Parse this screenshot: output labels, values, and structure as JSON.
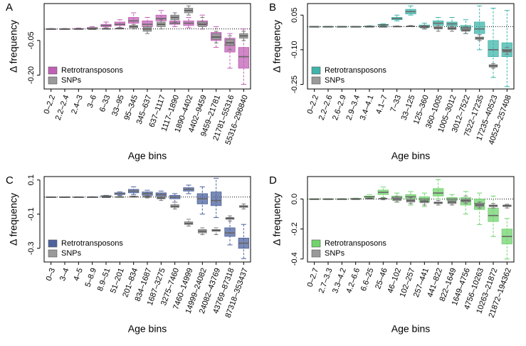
{
  "chart_data": [
    {
      "type": "box",
      "panel": "A",
      "xlabel": "Age bins",
      "ylabel": "Δ frequency",
      "hline": 0,
      "ylim": [
        -0.26,
        0.11
      ],
      "yticks": [
        -0.05,
        {
          "value": -0.2,
          "label": "-0.20"
        }
      ],
      "legend": "bottom-left",
      "categories": [
        "0–2.2",
        "2.2–2.4",
        "2.4–3",
        "3–6",
        "6–33",
        "33–95",
        "95–345",
        "345–637",
        "637–1117",
        "1117–1890",
        "1890–4402",
        "4402–9459",
        "9459–21781",
        "21781–55316",
        "55316–296840"
      ],
      "series": [
        {
          "name": "Retrotransposons",
          "color": "#c060b4",
          "values": [
            [
              0,
              0,
              0,
              0,
              0
            ],
            [
              0,
              0,
              0,
              0,
              0
            ],
            [
              0,
              0,
              0,
              0.002,
              0.004
            ],
            [
              0,
              0.002,
              0.004,
              0.006,
              0.01
            ],
            [
              0.005,
              0.01,
              0.015,
              0.02,
              0.03
            ],
            [
              0.005,
              0.015,
              0.02,
              0.03,
              0.04
            ],
            [
              0.01,
              0.025,
              0.035,
              0.05,
              0.07
            ],
            [
              0,
              0.01,
              0.02,
              0.035,
              0.05
            ],
            [
              0.02,
              0.035,
              0.045,
              0.06,
              0.08
            ],
            [
              0.01,
              0.02,
              0.025,
              0.035,
              0.05
            ],
            [
              0.005,
              0.015,
              0.025,
              0.035,
              0.05
            ],
            [
              0,
              0.015,
              0.025,
              0.035,
              0.06
            ],
            [
              -0.08,
              -0.05,
              -0.035,
              -0.015,
              0.01
            ],
            [
              -0.17,
              -0.1,
              -0.07,
              -0.04,
              -0.02
            ],
            [
              -0.24,
              -0.17,
              -0.12,
              -0.08,
              0
            ]
          ]
        },
        {
          "name": "SNPs",
          "color": "#9a9a9a",
          "values": [
            [
              0,
              0,
              0,
              0,
              0.002
            ],
            [
              0,
              0,
              0,
              0,
              0.002
            ],
            [
              0,
              0,
              0,
              0,
              0.002
            ],
            [
              0,
              0,
              0,
              0,
              0.002
            ],
            [
              0,
              0,
              0,
              0.002,
              0.004
            ],
            [
              0,
              0,
              0.002,
              0.004,
              0.006
            ],
            [
              0,
              0.005,
              0.01,
              0.015,
              0.02
            ],
            [
              -0.02,
              -0.01,
              0,
              0.01,
              0.02
            ],
            [
              0,
              0.01,
              0.02,
              0.03,
              0.04
            ],
            [
              0.03,
              0.04,
              0.05,
              0.06,
              0.07
            ],
            [
              0.06,
              0.07,
              0.08,
              0.09,
              0.1
            ],
            [
              0,
              0.01,
              0.02,
              0.03,
              0.05
            ],
            [
              -0.06,
              -0.045,
              -0.035,
              -0.02,
              -0.01
            ],
            [
              -0.09,
              -0.07,
              -0.06,
              -0.045,
              -0.03
            ],
            [
              -0.05,
              -0.04,
              -0.03,
              -0.02,
              -0.01
            ]
          ]
        }
      ]
    },
    {
      "type": "box",
      "panel": "B",
      "xlabel": "Age bins",
      "ylabel": "Δ frequency",
      "hline": 0,
      "ylim": [
        -0.27,
        0.1
      ],
      "yticks": [
        0.05,
        {
          "value": -0.1,
          "label": "-0.10"
        },
        -0.25
      ],
      "legend": "bottom-left",
      "categories": [
        "0–2.2",
        "2.2–2.6",
        "2.6–2.9",
        "2.9–3.4",
        "3.4–4.1",
        "4.1–7",
        "7–33",
        "33–125",
        "125–360",
        "360–1005",
        "1005–3012",
        "3012–7522",
        "7522–17235",
        "17235–40523",
        "40523–257408"
      ],
      "series": [
        {
          "name": "Retrotransposons",
          "color": "#3fb5ab",
          "values": [
            [
              0,
              0,
              0,
              0,
              0
            ],
            [
              0,
              0,
              0,
              0,
              0
            ],
            [
              0,
              0,
              0,
              0,
              0
            ],
            [
              0,
              0,
              0,
              0,
              0
            ],
            [
              0,
              0,
              0.001,
              0.002,
              0.004
            ],
            [
              0.003,
              0.005,
              0.008,
              0.01,
              0.012
            ],
            [
              0.025,
              0.03,
              0.035,
              0.04,
              0.05
            ],
            [
              0.05,
              0.055,
              0.065,
              0.075,
              0.09
            ],
            [
              -0.01,
              -0.003,
              0.002,
              0.007,
              0.015
            ],
            [
              -0.01,
              0.005,
              0.015,
              0.025,
              0.04
            ],
            [
              -0.01,
              0.002,
              0.012,
              0.02,
              0.04
            ],
            [
              -0.03,
              -0.015,
              -0.005,
              0.005,
              0.03
            ],
            [
              -0.1,
              -0.03,
              -0.01,
              0.02,
              0.09
            ],
            [
              -0.22,
              -0.13,
              -0.1,
              -0.06,
              0.08
            ],
            [
              -0.26,
              -0.13,
              -0.1,
              -0.07,
              0.07
            ]
          ]
        },
        {
          "name": "SNPs",
          "color": "#9a9a9a",
          "values": [
            [
              0,
              0,
              0,
              0,
              0
            ],
            [
              0,
              0,
              0,
              0,
              0
            ],
            [
              0,
              0,
              0,
              0,
              0
            ],
            [
              0,
              0,
              0,
              0,
              0
            ],
            [
              0,
              0,
              0,
              0,
              0
            ],
            [
              0,
              0,
              0,
              0,
              0.002
            ],
            [
              0,
              0,
              0,
              0.002,
              0.003
            ],
            [
              0,
              0,
              0.001,
              0.003,
              0.005
            ],
            [
              -0.01,
              -0.005,
              -0.002,
              0,
              0.005
            ],
            [
              -0.02,
              -0.01,
              -0.005,
              0,
              0.005
            ],
            [
              -0.02,
              -0.012,
              -0.008,
              -0.003,
              0.002
            ],
            [
              -0.03,
              -0.02,
              -0.015,
              -0.008,
              0
            ],
            [
              -0.06,
              -0.055,
              -0.05,
              -0.045,
              -0.035
            ],
            [
              -0.18,
              -0.175,
              -0.17,
              -0.165,
              -0.16
            ],
            [
              -0.12,
              -0.11,
              -0.105,
              -0.1,
              -0.09
            ]
          ]
        }
      ]
    },
    {
      "type": "box",
      "panel": "C",
      "xlabel": "Age bins",
      "ylabel": "Δ frequency",
      "hline": 0,
      "ylim": [
        -0.38,
        0.12
      ],
      "yticks": [
        0.1,
        -0.1,
        -0.3
      ],
      "legend": "bottom-left",
      "categories": [
        "0–3",
        "3–4",
        "4–5",
        "5–8.9",
        "8.9–51",
        "51–201",
        "201–834",
        "834–1687",
        "1687–3275",
        "3275–7460",
        "7460–14999",
        "14999–24082",
        "24082–43769",
        "43769–87318",
        "87318–353437"
      ],
      "series": [
        {
          "name": "Retrotransposons",
          "color": "#4d639e",
          "values": [
            [
              0,
              0,
              0,
              0,
              0
            ],
            [
              0,
              0,
              0,
              0,
              0
            ],
            [
              0,
              0,
              0,
              0,
              0
            ],
            [
              0,
              0,
              0,
              0,
              0.002
            ],
            [
              0.002,
              0.004,
              0.006,
              0.008,
              0.01
            ],
            [
              0.01,
              0.015,
              0.02,
              0.025,
              0.03
            ],
            [
              0.015,
              0.025,
              0.035,
              0.045,
              0.06
            ],
            [
              0,
              0.01,
              0.02,
              0.03,
              0.04
            ],
            [
              -0.01,
              0.005,
              0.015,
              0.025,
              0.035
            ],
            [
              -0.03,
              -0.01,
              0,
              0.01,
              0.02
            ],
            [
              0.02,
              0.035,
              0.045,
              0.055,
              0.07
            ],
            [
              -0.1,
              -0.04,
              -0.01,
              0.02,
              0.06
            ],
            [
              -0.12,
              -0.05,
              -0.02,
              0.03,
              0.11
            ],
            [
              -0.28,
              -0.23,
              -0.21,
              -0.18,
              -0.12
            ],
            [
              -0.36,
              -0.3,
              -0.27,
              -0.24,
              -0.16
            ]
          ]
        },
        {
          "name": "SNPs",
          "color": "#9a9a9a",
          "values": [
            [
              0,
              0,
              0,
              0,
              0
            ],
            [
              0,
              0,
              0,
              0,
              0
            ],
            [
              0,
              0,
              0,
              0,
              0
            ],
            [
              0,
              0,
              0,
              0,
              0
            ],
            [
              0,
              0,
              0,
              0,
              0.002
            ],
            [
              0,
              0,
              0,
              0.002,
              0.004
            ],
            [
              0,
              0,
              0.002,
              0.004,
              0.006
            ],
            [
              -0.005,
              0,
              0.002,
              0.004,
              0.008
            ],
            [
              -0.02,
              -0.01,
              -0.005,
              0,
              0.005
            ],
            [
              -0.07,
              -0.06,
              -0.055,
              -0.045,
              -0.03
            ],
            [
              -0.17,
              -0.16,
              -0.155,
              -0.145,
              -0.13
            ],
            [
              -0.22,
              -0.21,
              -0.2,
              -0.19,
              -0.18
            ],
            [
              -0.22,
              -0.2,
              -0.195,
              -0.19,
              -0.18
            ],
            [
              -0.14,
              -0.13,
              -0.125,
              -0.12,
              -0.11
            ],
            [
              -0.07,
              -0.06,
              -0.055,
              -0.05,
              -0.04
            ]
          ]
        }
      ]
    },
    {
      "type": "box",
      "panel": "D",
      "xlabel": "Age bins",
      "ylabel": "Δ frequency",
      "hline": 0,
      "ylim": [
        -0.42,
        0.15
      ],
      "yticks": [
        {
          "value": 0,
          "label": "0.0"
        },
        -0.2,
        -0.4
      ],
      "legend": "bottom-left",
      "categories": [
        "0–2.7",
        "2.7–3.3",
        "3.3–4.2",
        "4.2–6.6",
        "6.6–25",
        "25–46",
        "46–102",
        "102–257",
        "257–441",
        "441–822",
        "822–1649",
        "1649–4756",
        "4756–10263",
        "10263–21872",
        "21872–194362"
      ],
      "series": [
        {
          "name": "Retrotransposons",
          "color": "#72d36e",
          "values": [
            [
              0,
              0,
              0,
              0,
              0
            ],
            [
              0,
              0,
              0,
              0,
              0
            ],
            [
              0,
              0,
              0,
              0,
              0.002
            ],
            [
              0,
              0,
              0.002,
              0.004,
              0.006
            ],
            [
              0.005,
              0.01,
              0.015,
              0.02,
              0.03
            ],
            [
              0.01,
              0.03,
              0.045,
              0.06,
              0.08
            ],
            [
              -0.02,
              0,
              0.01,
              0.02,
              0.04
            ],
            [
              -0.04,
              0,
              0.015,
              0.03,
              0.05
            ],
            [
              -0.05,
              -0.02,
              0,
              0.015,
              0.04
            ],
            [
              0,
              0.02,
              0.04,
              0.07,
              0.13
            ],
            [
              -0.03,
              -0.01,
              0,
              0.01,
              0.03
            ],
            [
              -0.1,
              -0.04,
              -0.01,
              0.01,
              0.05
            ],
            [
              -0.17,
              -0.07,
              -0.03,
              0,
              0.04
            ],
            [
              -0.25,
              -0.15,
              -0.11,
              -0.06,
              0.02
            ],
            [
              -0.4,
              -0.3,
              -0.25,
              -0.2,
              -0.13
            ]
          ]
        },
        {
          "name": "SNPs",
          "color": "#9a9a9a",
          "values": [
            [
              0,
              0,
              0,
              0,
              0
            ],
            [
              0,
              0,
              0,
              0,
              0
            ],
            [
              0,
              0,
              0,
              0,
              0
            ],
            [
              0,
              0,
              0,
              0,
              0.002
            ],
            [
              0,
              0,
              0.002,
              0.004,
              0.006
            ],
            [
              -0.005,
              0,
              0.002,
              0.004,
              0.008
            ],
            [
              -0.02,
              -0.01,
              0,
              0.01,
              0.02
            ],
            [
              -0.03,
              -0.02,
              -0.01,
              0,
              0.01
            ],
            [
              -0.04,
              -0.025,
              -0.015,
              -0.01,
              0
            ],
            [
              -0.04,
              -0.03,
              -0.025,
              -0.02,
              -0.01
            ],
            [
              -0.04,
              -0.03,
              -0.02,
              -0.01,
              0
            ],
            [
              -0.03,
              -0.02,
              -0.01,
              0,
              0.02
            ],
            [
              -0.06,
              -0.05,
              -0.04,
              -0.03,
              -0.02
            ],
            [
              -0.06,
              -0.05,
              -0.045,
              -0.04,
              -0.03
            ],
            [
              -0.06,
              -0.05,
              -0.045,
              -0.04,
              -0.035
            ]
          ]
        }
      ]
    }
  ]
}
